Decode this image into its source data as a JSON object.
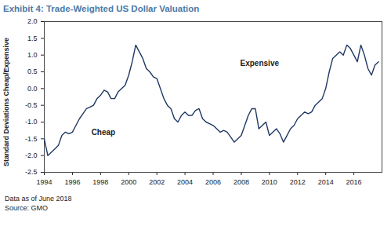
{
  "chart_data": {
    "type": "line",
    "title": "Exhibit 4: Trade-Weighted US Dollar Valuation",
    "y_label": "Standard Deviations Cheap/Expensive",
    "caption": [
      "Data as of June 2018",
      "Source: GMO"
    ],
    "annotations": [
      {
        "text": "Expensive",
        "x": 2009.3,
        "y": 0.75
      },
      {
        "text": "Cheap",
        "x": 1998.2,
        "y": -1.3
      }
    ],
    "color": "#1f3864",
    "grid": false,
    "xlim": [
      1994,
      2018
    ],
    "xticks": [
      1994,
      1996,
      1998,
      2000,
      2002,
      2004,
      2006,
      2008,
      2010,
      2012,
      2014,
      2016
    ],
    "ylim": [
      -2.5,
      2.0
    ],
    "yticks": [
      {
        "value": 2.0,
        "label": "2.0"
      },
      1.5,
      {
        "value": 1.0,
        "label": "1.0"
      },
      0.5,
      {
        "value": 0.0,
        "label": "0.0"
      },
      -0.5,
      {
        "value": -1.0,
        "label": "-1.0"
      },
      -1.5,
      {
        "value": -2.0,
        "label": "-2.0"
      },
      -2.5
    ],
    "x": [
      1994.0,
      1994.25,
      1994.5,
      1994.75,
      1995.0,
      1995.25,
      1995.5,
      1995.75,
      1996.0,
      1996.25,
      1996.5,
      1996.75,
      1997.0,
      1997.25,
      1997.5,
      1997.75,
      1998.0,
      1998.25,
      1998.5,
      1998.75,
      1999.0,
      1999.25,
      1999.5,
      1999.75,
      2000.0,
      2000.25,
      2000.5,
      2000.75,
      2001.0,
      2001.25,
      2001.5,
      2001.75,
      2002.0,
      2002.25,
      2002.5,
      2002.75,
      2003.0,
      2003.25,
      2003.5,
      2003.75,
      2004.0,
      2004.25,
      2004.5,
      2004.75,
      2005.0,
      2005.25,
      2005.5,
      2005.75,
      2006.0,
      2006.25,
      2006.5,
      2006.75,
      2007.0,
      2007.25,
      2007.5,
      2007.75,
      2008.0,
      2008.25,
      2008.5,
      2008.75,
      2009.0,
      2009.25,
      2009.5,
      2009.75,
      2010.0,
      2010.25,
      2010.5,
      2010.75,
      2011.0,
      2011.25,
      2011.5,
      2011.75,
      2012.0,
      2012.25,
      2012.5,
      2012.75,
      2013.0,
      2013.25,
      2013.5,
      2013.75,
      2014.0,
      2014.25,
      2014.5,
      2014.75,
      2015.0,
      2015.25,
      2015.5,
      2015.75,
      2016.0,
      2016.25,
      2016.5,
      2016.75,
      2017.0,
      2017.25,
      2017.5,
      2017.75
    ],
    "values": [
      -1.5,
      -2.0,
      -1.9,
      -1.8,
      -1.7,
      -1.4,
      -1.3,
      -1.35,
      -1.3,
      -1.1,
      -0.9,
      -0.75,
      -0.6,
      -0.55,
      -0.5,
      -0.3,
      -0.2,
      -0.05,
      -0.1,
      -0.3,
      -0.3,
      -0.1,
      0.0,
      0.1,
      0.4,
      0.8,
      1.3,
      1.1,
      0.9,
      0.6,
      0.5,
      0.35,
      0.3,
      0.0,
      -0.3,
      -0.5,
      -0.6,
      -0.9,
      -1.0,
      -0.8,
      -0.7,
      -0.8,
      -0.8,
      -0.65,
      -0.6,
      -0.9,
      -1.0,
      -1.05,
      -1.1,
      -1.2,
      -1.3,
      -1.25,
      -1.3,
      -1.45,
      -1.6,
      -1.5,
      -1.4,
      -1.1,
      -0.8,
      -0.6,
      -0.6,
      -1.2,
      -1.1,
      -1.0,
      -1.4,
      -1.3,
      -1.2,
      -1.35,
      -1.6,
      -1.4,
      -1.2,
      -1.1,
      -0.9,
      -0.8,
      -0.7,
      -0.75,
      -0.7,
      -0.5,
      -0.4,
      -0.3,
      0.0,
      0.5,
      0.9,
      1.0,
      1.1,
      1.0,
      1.3,
      1.2,
      1.0,
      0.8,
      1.3,
      1.0,
      0.6,
      0.4,
      0.7,
      0.8
    ]
  }
}
